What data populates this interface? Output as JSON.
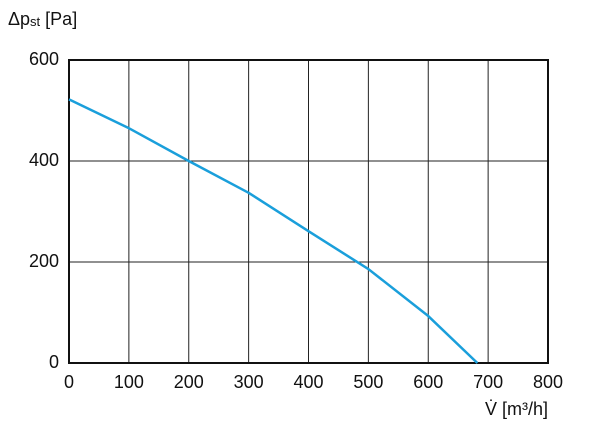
{
  "chart_data": {
    "type": "line",
    "ylabel": {
      "main": "Δp",
      "sub": "st",
      "unit": "[Pa]"
    },
    "xlabel": "V̇ [m³/h]",
    "x": [
      0,
      100,
      200,
      300,
      400,
      500,
      600,
      682
    ],
    "series": [
      {
        "color": "#1a9fdb",
        "values": [
          522,
          465,
          400,
          337,
          261,
          186,
          93,
          0
        ]
      }
    ],
    "xlim": [
      0,
      800
    ],
    "xticks": [
      0,
      100,
      200,
      300,
      400,
      500,
      600,
      700,
      800
    ],
    "ylim": [
      0,
      600
    ],
    "yticks": [
      0,
      200,
      400,
      600
    ],
    "grid": true
  }
}
